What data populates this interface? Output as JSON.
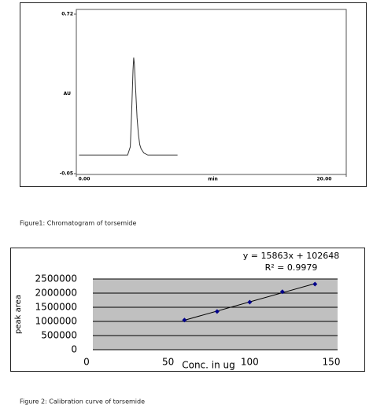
{
  "chart_data": [
    {
      "type": "line",
      "caption": "Figure1: Chromatogram of torsemide",
      "y_label": "AU",
      "x_label": "min",
      "x": [
        0.2,
        3.8,
        4.0,
        4.1,
        4.2,
        4.25,
        4.3,
        4.4,
        4.5,
        4.6,
        4.7,
        4.8,
        5.0,
        5.3,
        7.5
      ],
      "values": [
        0.04,
        0.04,
        0.08,
        0.25,
        0.45,
        0.51,
        0.48,
        0.35,
        0.22,
        0.14,
        0.09,
        0.07,
        0.05,
        0.04,
        0.04
      ],
      "color": "#333333",
      "xlim": [
        0,
        20
      ],
      "xticks": [
        {
          "value": 0,
          "label": "0.00"
        },
        {
          "value": 20,
          "label": "20.00"
        }
      ],
      "ylim": [
        -0.05,
        0.72
      ],
      "yticks": [
        -0.05,
        0.72
      ]
    },
    {
      "type": "scatter",
      "caption": "Figure 2: Calibration curve of torsemide",
      "y_label": "peak area",
      "x_label": "Conc. in ug",
      "annotations": [
        "y = 15863x + 102648",
        "R² = 0.9979"
      ],
      "x": [
        60,
        80,
        100,
        120,
        140
      ],
      "series": [
        {
          "color": "#00008b",
          "values": [
            1050000,
            1350000,
            1680000,
            2050000,
            2320000
          ]
        }
      ],
      "xlim": [
        0,
        150
      ],
      "xticks": [
        0,
        50,
        100,
        150
      ],
      "ylim": [
        0,
        2500000
      ],
      "yticks": [
        0,
        500000,
        1000000,
        1500000,
        2000000,
        2500000
      ],
      "grid": true
    }
  ]
}
